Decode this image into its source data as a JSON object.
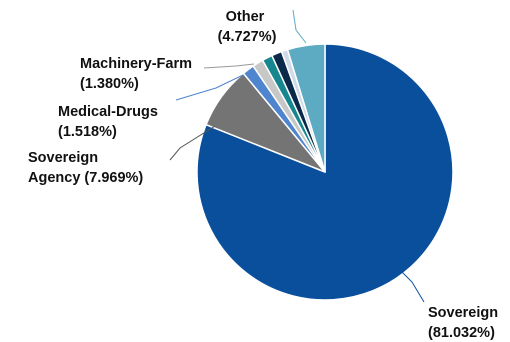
{
  "chart_data": {
    "type": "pie",
    "title": "",
    "start_angle_deg": 0,
    "direction": "clockwise",
    "slices": [
      {
        "label": "Sovereign",
        "value": 81.032,
        "value_text": "(81.032%)",
        "color": "#0a4f9b"
      },
      {
        "label": "Sovereign Agency",
        "value": 7.969,
        "value_text": "(7.969%)",
        "color": "#747474"
      },
      {
        "label": "Medical-Drugs",
        "value": 1.518,
        "value_text": "(1.518%)",
        "color": "#4f84cf"
      },
      {
        "label": "Machinery-Farm",
        "value": 1.38,
        "value_text": "(1.380%)",
        "color": "#c7c7c7"
      },
      {
        "label": "",
        "value": 1.295,
        "value_text": "",
        "color": "#16878f"
      },
      {
        "label": "",
        "value": 1.295,
        "value_text": "",
        "color": "#0b2a4a"
      },
      {
        "label": "",
        "value": 0.784,
        "value_text": "",
        "color": "#cfdbe9"
      },
      {
        "label": "Other",
        "value": 4.727,
        "value_text": "(4.727%)",
        "color": "#5cabc3"
      }
    ]
  }
}
